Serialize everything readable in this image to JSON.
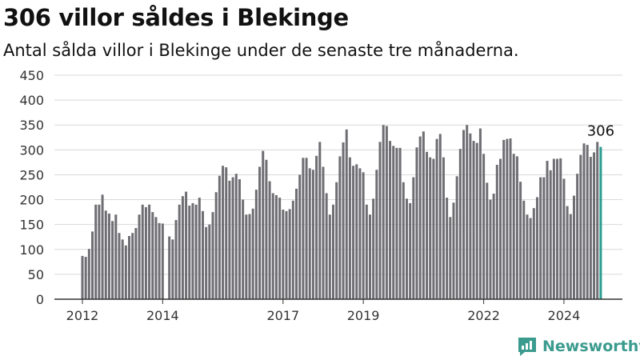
{
  "header": {
    "title": "306 villor såldes i Blekinge",
    "subtitle": "Antal sålda villor i Blekinge under de senaste tre månaderna."
  },
  "brand": {
    "name": "Newsworthy",
    "icon": "newsworthy-logo-icon"
  },
  "colors": {
    "bar": "#6e6e73",
    "highlight": "#2a9d8f",
    "grid": "#d9d9d9",
    "axis": "#333333",
    "brand": "#3a9b8e"
  },
  "chart_data": {
    "type": "bar",
    "title": "306 villor såldes i Blekinge",
    "subtitle": "Antal sålda villor i Blekinge under de senaste tre månaderna.",
    "xlabel": "",
    "ylabel": "",
    "ylim": [
      0,
      450
    ],
    "yticks": [
      0,
      50,
      100,
      150,
      200,
      250,
      300,
      350,
      400,
      450
    ],
    "xticks": [
      "2012",
      "2014",
      "2017",
      "2019",
      "2022",
      "2024"
    ],
    "grid": true,
    "legend": "none",
    "highlight_label": "306",
    "categories": [
      "2012-01",
      "2012-02",
      "2012-03",
      "2012-04",
      "2012-05",
      "2012-06",
      "2012-07",
      "2012-08",
      "2012-09",
      "2012-10",
      "2012-11",
      "2012-12",
      "2013-01",
      "2013-02",
      "2013-03",
      "2013-04",
      "2013-05",
      "2013-06",
      "2013-07",
      "2013-08",
      "2013-09",
      "2013-10",
      "2013-11",
      "2013-12",
      "2014-01",
      "2014-02",
      "2014-03",
      "2014-04",
      "2014-05",
      "2014-06",
      "2014-07",
      "2014-08",
      "2014-09",
      "2014-10",
      "2014-11",
      "2014-12",
      "2015-01",
      "2015-02",
      "2015-03",
      "2015-04",
      "2015-05",
      "2015-06",
      "2015-07",
      "2015-08",
      "2015-09",
      "2015-10",
      "2015-11",
      "2015-12",
      "2016-01",
      "2016-02",
      "2016-03",
      "2016-04",
      "2016-05",
      "2016-06",
      "2016-07",
      "2016-08",
      "2016-09",
      "2016-10",
      "2016-11",
      "2016-12",
      "2017-01",
      "2017-02",
      "2017-03",
      "2017-04",
      "2017-05",
      "2017-06",
      "2017-07",
      "2017-08",
      "2017-09",
      "2017-10",
      "2017-11",
      "2017-12",
      "2018-01",
      "2018-02",
      "2018-03",
      "2018-04",
      "2018-05",
      "2018-06",
      "2018-07",
      "2018-08",
      "2018-09",
      "2018-10",
      "2018-11",
      "2018-12",
      "2019-01",
      "2019-02",
      "2019-03",
      "2019-04",
      "2019-05",
      "2019-06",
      "2019-07",
      "2019-08",
      "2019-09",
      "2019-10",
      "2019-11",
      "2019-12",
      "2020-01",
      "2020-02",
      "2020-03",
      "2020-04",
      "2020-05",
      "2020-06",
      "2020-07",
      "2020-08",
      "2020-09",
      "2020-10",
      "2020-11",
      "2020-12",
      "2021-01",
      "2021-02",
      "2021-03",
      "2021-04",
      "2021-05",
      "2021-06",
      "2021-07",
      "2021-08",
      "2021-09",
      "2021-10",
      "2021-11",
      "2021-12",
      "2022-01",
      "2022-02",
      "2022-03",
      "2022-04",
      "2022-05",
      "2022-06",
      "2022-07",
      "2022-08",
      "2022-09",
      "2022-10",
      "2022-11",
      "2022-12",
      "2023-01",
      "2023-02",
      "2023-03",
      "2023-04",
      "2023-05",
      "2023-06",
      "2023-07",
      "2023-08",
      "2023-09",
      "2023-10",
      "2023-11",
      "2023-12",
      "2024-01",
      "2024-02",
      "2024-03",
      "2024-04",
      "2024-05",
      "2024-06",
      "2024-07",
      "2024-08",
      "2024-09",
      "2024-10",
      "2024-11",
      "2024-12"
    ],
    "values": [
      87,
      85,
      101,
      136,
      190,
      190,
      210,
      178,
      172,
      157,
      170,
      133,
      120,
      108,
      127,
      133,
      143,
      170,
      190,
      185,
      190,
      175,
      165,
      153,
      152,
      null,
      126,
      120,
      159,
      190,
      207,
      216,
      188,
      193,
      190,
      204,
      177,
      145,
      150,
      175,
      215,
      248,
      268,
      265,
      238,
      245,
      252,
      241,
      200,
      170,
      171,
      182,
      220,
      266,
      298,
      280,
      237,
      213,
      209,
      204,
      180,
      177,
      181,
      198,
      222,
      250,
      284,
      284,
      263,
      260,
      288,
      316,
      266,
      213,
      170,
      190,
      235,
      287,
      315,
      341,
      285,
      268,
      271,
      263,
      255,
      190,
      170,
      202,
      260,
      316,
      350,
      348,
      318,
      308,
      304,
      304,
      235,
      202,
      193,
      245,
      305,
      327,
      337,
      296,
      285,
      282,
      322,
      332,
      285,
      204,
      165,
      194,
      247,
      302,
      340,
      350,
      333,
      318,
      314,
      343,
      292,
      234,
      200,
      212,
      270,
      282,
      320,
      322,
      323,
      292,
      287,
      236,
      198,
      170,
      163,
      183,
      205,
      245,
      245,
      278,
      259,
      282,
      282,
      283,
      242,
      187,
      171,
      208,
      252,
      290,
      313,
      310,
      286,
      295,
      316,
      306
    ]
  }
}
